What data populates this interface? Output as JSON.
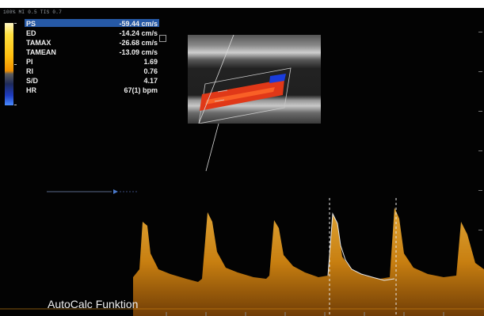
{
  "header": {
    "status_line": "100% MI 0.5 TIS 0.7"
  },
  "measurements": [
    {
      "label": "PS",
      "value": "-59.44 cm/s"
    },
    {
      "label": "ED",
      "value": "-14.24 cm/s"
    },
    {
      "label": "TAMAX",
      "value": "-26.68 cm/s"
    },
    {
      "label": "TAMEAN",
      "value": "-13.09 cm/s"
    },
    {
      "label": "PI",
      "value": "1.69"
    },
    {
      "label": "RI",
      "value": "0.76"
    },
    {
      "label": "S/D",
      "value": "4.17"
    },
    {
      "label": "HR",
      "value": "67(1) bpm"
    }
  ],
  "colors": {
    "measurement_highlight": "#2a63b8",
    "doppler_spectrum": "#d98a12",
    "flow_red": "#e03818",
    "flow_blue": "#1a3cdc",
    "trace_line": "#e8e8e8"
  },
  "caption": "AutoCalc Funktion"
}
